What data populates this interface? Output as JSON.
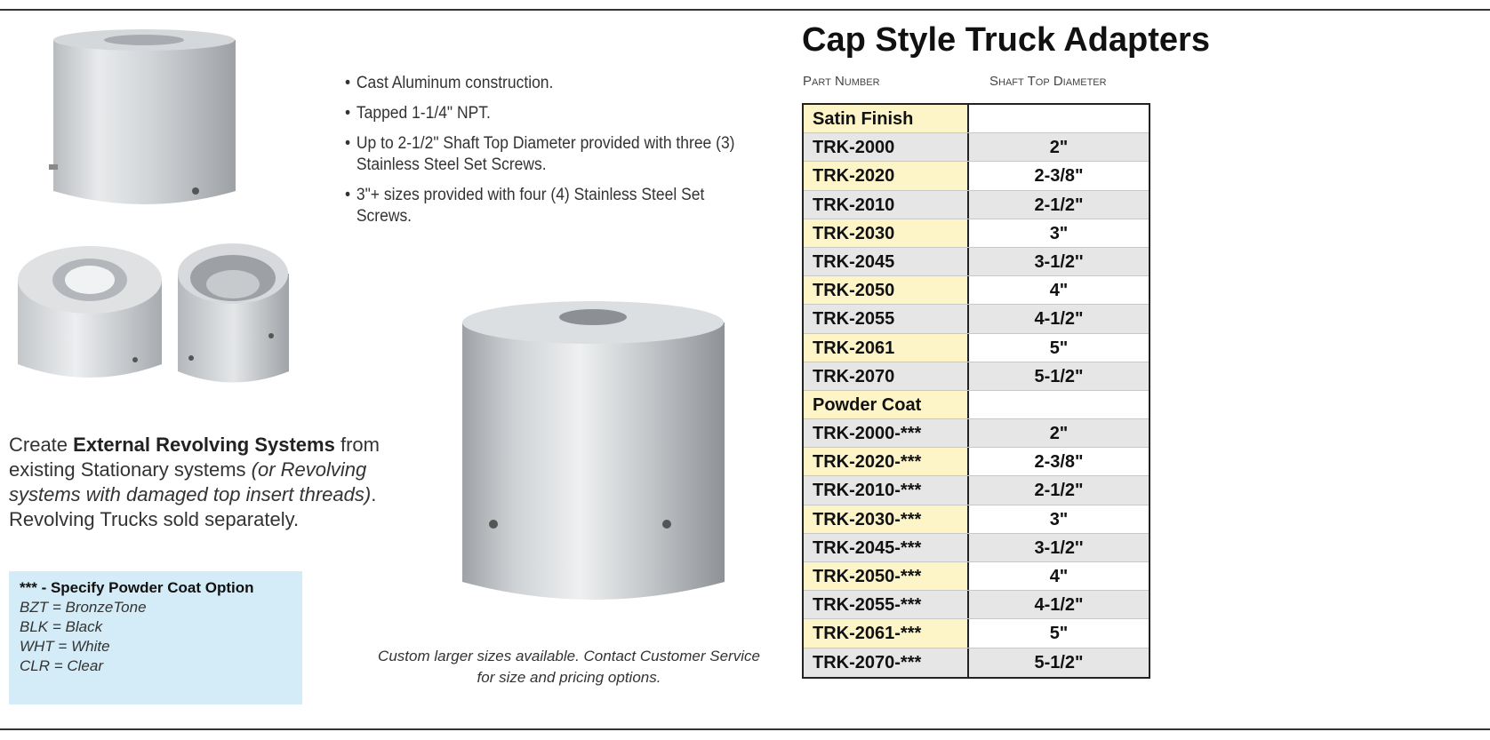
{
  "bullets": [
    "Cast Aluminum construction.",
    "Tapped 1-1/4\" NPT.",
    "Up to 2-1/2\" Shaft Top Diameter provided with three (3) Stainless Steel Set Screws.",
    "3\"+ sizes provided with four (4) Stainless Steel Set Screws."
  ],
  "intro": {
    "prefix": "Create ",
    "bold": "External Revolving Systems",
    "middle": " from existing Stationary systems ",
    "italic": "(or Revolving systems with damaged top insert threads)",
    "suffix": ". Revolving Trucks sold separately."
  },
  "note": {
    "title": "*** - Specify Powder Coat Option",
    "items": [
      "BZT = BronzeTone",
      "BLK = Black",
      "WHT = White",
      "CLR = Clear"
    ]
  },
  "caption": "Custom larger sizes available. Contact Customer Service for size and pricing options.",
  "heading": "Cap Style Truck Adapters",
  "columns": {
    "part": "Part Number",
    "diameter": "Shaft Top Diameter"
  },
  "table": {
    "sections": [
      {
        "name": "Satin Finish",
        "rows": [
          {
            "part": "TRK-2000",
            "diameter": "2\""
          },
          {
            "part": "TRK-2020",
            "diameter": "2-3/8\""
          },
          {
            "part": "TRK-2010",
            "diameter": "2-1/2\""
          },
          {
            "part": "TRK-2030",
            "diameter": "3\""
          },
          {
            "part": "TRK-2045",
            "diameter": "3-1/2''"
          },
          {
            "part": "TRK-2050",
            "diameter": "4\""
          },
          {
            "part": "TRK-2055",
            "diameter": "4-1/2\""
          },
          {
            "part": "TRK-2061",
            "diameter": "5\""
          },
          {
            "part": "TRK-2070",
            "diameter": "5-1/2\""
          }
        ]
      },
      {
        "name": "Powder Coat",
        "rows": [
          {
            "part": "TRK-2000-***",
            "diameter": "2\""
          },
          {
            "part": "TRK-2020-***",
            "diameter": "2-3/8\""
          },
          {
            "part": "TRK-2010-***",
            "diameter": "2-1/2\""
          },
          {
            "part": "TRK-2030-***",
            "diameter": "3\""
          },
          {
            "part": "TRK-2045-***",
            "diameter": "3-1/2''"
          },
          {
            "part": "TRK-2050-***",
            "diameter": "4\""
          },
          {
            "part": "TRK-2055-***",
            "diameter": "4-1/2\""
          },
          {
            "part": "TRK-2061-***",
            "diameter": "5\""
          },
          {
            "part": "TRK-2070-***",
            "diameter": "5-1/2\""
          }
        ]
      }
    ]
  }
}
